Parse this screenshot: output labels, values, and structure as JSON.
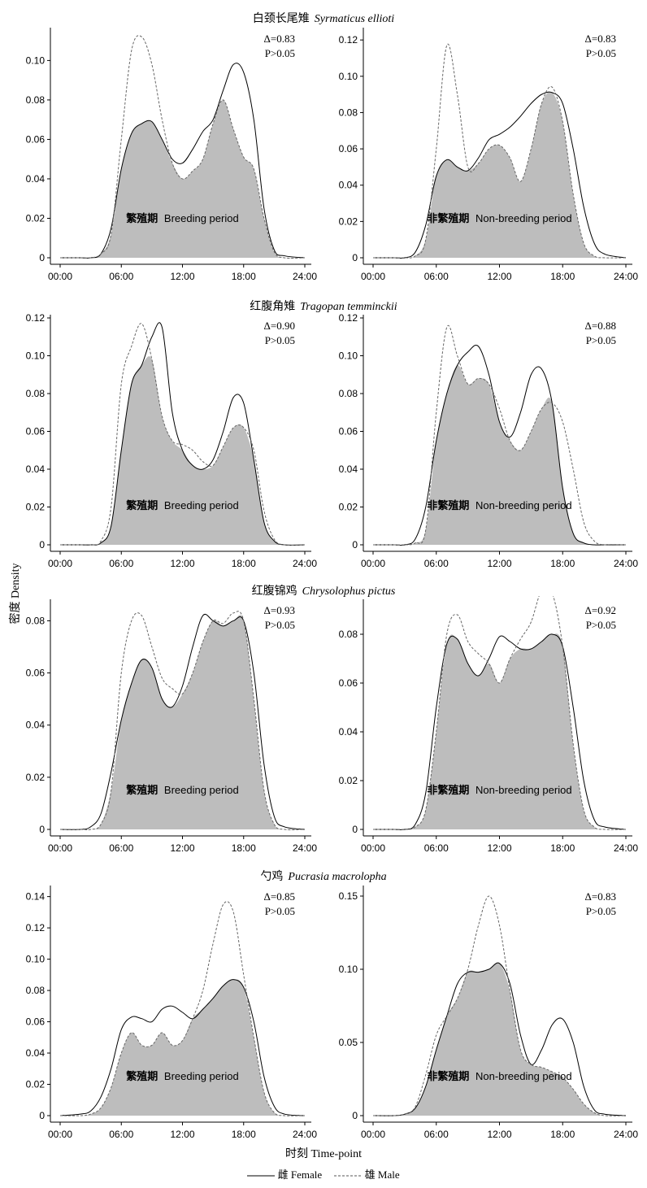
{
  "species": [
    {
      "cn": "白颈长尾雉",
      "latin": "Syrmaticus ellioti"
    },
    {
      "cn": "红腹角雉",
      "latin": "Tragopan temminckii"
    },
    {
      "cn": "红腹锦鸡",
      "latin": "Chrysolophus pictus"
    },
    {
      "cn": "勺鸡",
      "latin": "Pucrasia macrolopha"
    }
  ],
  "y_axis_label": "密度 Density",
  "x_axis_label": "时刻 Time-point",
  "legend": {
    "female": "雌 Female",
    "male": "雄 Male"
  },
  "periods": {
    "breeding": {
      "cn": "繁殖期",
      "en": "Breeding period"
    },
    "nonbreeding": {
      "cn": "非繁殖期",
      "en": "Non-breeding period"
    }
  },
  "chart_data": [
    {
      "type": "line",
      "species": "白颈长尾雉 Syrmaticus ellioti",
      "period": "繁殖期 Breeding period",
      "delta": "Δ=0.83",
      "p": "P>0.05",
      "ylim": [
        0,
        0.115
      ],
      "yticks": [
        0,
        0.02,
        0.04,
        0.06,
        0.08,
        0.1
      ],
      "ytick_labels": [
        "0",
        "0.02",
        "0.04",
        "0.06",
        "0.08",
        "0.10"
      ],
      "xticks": [
        "00:00",
        "06:00",
        "12:00",
        "18:00",
        "24:00"
      ],
      "xlim": [
        0,
        24
      ],
      "x": [
        0,
        2,
        3,
        4,
        5,
        6,
        7,
        8,
        9,
        10,
        11,
        12,
        13,
        14,
        15,
        16,
        17,
        18,
        19,
        20,
        21,
        22,
        24
      ],
      "series": [
        {
          "name": "雌 Female",
          "style": "solid",
          "values": [
            0,
            0,
            0,
            0.002,
            0.015,
            0.045,
            0.063,
            0.068,
            0.069,
            0.06,
            0.05,
            0.048,
            0.055,
            0.064,
            0.07,
            0.085,
            0.098,
            0.094,
            0.07,
            0.025,
            0.004,
            0.001,
            0
          ]
        },
        {
          "name": "雄 Male",
          "style": "dashed",
          "values": [
            0,
            0,
            0,
            0.002,
            0.012,
            0.06,
            0.105,
            0.112,
            0.098,
            0.07,
            0.048,
            0.04,
            0.044,
            0.05,
            0.068,
            0.08,
            0.065,
            0.051,
            0.045,
            0.02,
            0.003,
            0,
            0
          ]
        }
      ]
    },
    {
      "type": "line",
      "species": "白颈长尾雉 Syrmaticus ellioti",
      "period": "非繁殖期 Non-breeding period",
      "delta": "Δ=0.83",
      "p": "P>0.05",
      "ylim": [
        0,
        0.125
      ],
      "yticks": [
        0,
        0.02,
        0.04,
        0.06,
        0.08,
        0.1,
        0.12
      ],
      "ytick_labels": [
        "0",
        "0.02",
        "0.04",
        "0.06",
        "0.08",
        "0.10",
        "0.12"
      ],
      "xticks": [
        "00:00",
        "06:00",
        "12:00",
        "18:00",
        "24:00"
      ],
      "xlim": [
        0,
        24
      ],
      "x": [
        0,
        2,
        3,
        4,
        5,
        6,
        7,
        8,
        9,
        10,
        11,
        12,
        13,
        14,
        15,
        16,
        17,
        18,
        19,
        20,
        21,
        22,
        24
      ],
      "series": [
        {
          "name": "雌 Female",
          "style": "solid",
          "values": [
            0,
            0,
            0,
            0.003,
            0.018,
            0.045,
            0.054,
            0.05,
            0.048,
            0.055,
            0.065,
            0.068,
            0.072,
            0.078,
            0.085,
            0.09,
            0.091,
            0.085,
            0.06,
            0.028,
            0.008,
            0.002,
            0
          ]
        },
        {
          "name": "雄 Male",
          "style": "dashed",
          "values": [
            0,
            0,
            0,
            0.001,
            0.01,
            0.06,
            0.117,
            0.09,
            0.05,
            0.052,
            0.06,
            0.062,
            0.055,
            0.042,
            0.06,
            0.085,
            0.094,
            0.075,
            0.035,
            0.008,
            0.001,
            0,
            0
          ]
        }
      ]
    },
    {
      "type": "line",
      "species": "红腹角雉 Tragopan temminckii",
      "period": "繁殖期 Breeding period",
      "delta": "Δ=0.90",
      "p": "P>0.05",
      "ylim": [
        0,
        0.12
      ],
      "yticks": [
        0,
        0.02,
        0.04,
        0.06,
        0.08,
        0.1,
        0.12
      ],
      "ytick_labels": [
        "0",
        "0.02",
        "0.04",
        "0.06",
        "0.08",
        "0.10",
        "0.12"
      ],
      "xticks": [
        "00:00",
        "06:00",
        "12:00",
        "18:00",
        "24:00"
      ],
      "xlim": [
        0,
        24
      ],
      "x": [
        0,
        2,
        3,
        4,
        5,
        6,
        7,
        8,
        9,
        10,
        11,
        12,
        13,
        14,
        15,
        16,
        17,
        18,
        19,
        20,
        21,
        22,
        24
      ],
      "series": [
        {
          "name": "雌 Female",
          "style": "solid",
          "values": [
            0,
            0,
            0,
            0.001,
            0.01,
            0.05,
            0.085,
            0.095,
            0.11,
            0.115,
            0.07,
            0.05,
            0.042,
            0.04,
            0.045,
            0.06,
            0.078,
            0.075,
            0.045,
            0.012,
            0.002,
            0,
            0
          ]
        },
        {
          "name": "雄 Male",
          "style": "dashed",
          "values": [
            0,
            0,
            0,
            0.002,
            0.02,
            0.085,
            0.105,
            0.117,
            0.098,
            0.068,
            0.055,
            0.053,
            0.05,
            0.044,
            0.042,
            0.052,
            0.062,
            0.062,
            0.05,
            0.018,
            0.003,
            0,
            0
          ]
        }
      ]
    },
    {
      "type": "line",
      "species": "红腹角雉 Tragopan temminckii",
      "period": "非繁殖期 Non-breeding period",
      "delta": "Δ=0.88",
      "p": "P>0.05",
      "ylim": [
        0,
        0.12
      ],
      "yticks": [
        0,
        0.02,
        0.04,
        0.06,
        0.08,
        0.1,
        0.12
      ],
      "ytick_labels": [
        "0",
        "0.02",
        "0.04",
        "0.06",
        "0.08",
        "0.10",
        "0.12"
      ],
      "xticks": [
        "00:00",
        "06:00",
        "12:00",
        "18:00",
        "24:00"
      ],
      "xlim": [
        0,
        24
      ],
      "x": [
        0,
        2,
        3,
        4,
        5,
        6,
        7,
        8,
        9,
        10,
        11,
        12,
        13,
        14,
        15,
        16,
        17,
        18,
        19,
        20,
        21,
        22,
        24
      ],
      "series": [
        {
          "name": "雌 Female",
          "style": "solid",
          "values": [
            0,
            0,
            0,
            0.003,
            0.02,
            0.055,
            0.08,
            0.095,
            0.102,
            0.105,
            0.09,
            0.065,
            0.057,
            0.07,
            0.09,
            0.093,
            0.075,
            0.03,
            0.006,
            0.001,
            0,
            0,
            0
          ]
        },
        {
          "name": "雄 Male",
          "style": "dashed",
          "values": [
            0,
            0,
            0,
            0.001,
            0.008,
            0.07,
            0.115,
            0.1,
            0.085,
            0.088,
            0.085,
            0.072,
            0.055,
            0.05,
            0.06,
            0.072,
            0.075,
            0.065,
            0.04,
            0.012,
            0.002,
            0,
            0
          ]
        }
      ]
    },
    {
      "type": "line",
      "species": "红腹锦鸡 Chrysolophus pictus",
      "period": "繁殖期 Breeding period",
      "delta": "Δ=0.93",
      "p": "P>0.05",
      "ylim": [
        0,
        0.087
      ],
      "yticks": [
        0,
        0.02,
        0.04,
        0.06,
        0.08
      ],
      "ytick_labels": [
        "0",
        "0.02",
        "0.04",
        "0.06",
        "0.08"
      ],
      "xticks": [
        "00:00",
        "06:00",
        "12:00",
        "18:00",
        "24:00"
      ],
      "xlim": [
        0,
        24
      ],
      "x": [
        0,
        2,
        3,
        4,
        5,
        6,
        7,
        8,
        9,
        10,
        11,
        12,
        13,
        14,
        15,
        16,
        17,
        18,
        19,
        20,
        21,
        22,
        24
      ],
      "series": [
        {
          "name": "雌 Female",
          "style": "solid",
          "values": [
            0,
            0,
            0.001,
            0.006,
            0.022,
            0.042,
            0.056,
            0.065,
            0.062,
            0.05,
            0.047,
            0.055,
            0.07,
            0.082,
            0.08,
            0.078,
            0.08,
            0.08,
            0.06,
            0.025,
            0.005,
            0.001,
            0
          ]
        },
        {
          "name": "雄 Male",
          "style": "dashed",
          "values": [
            0,
            0,
            0,
            0.002,
            0.015,
            0.06,
            0.08,
            0.082,
            0.07,
            0.058,
            0.054,
            0.052,
            0.06,
            0.072,
            0.08,
            0.079,
            0.083,
            0.08,
            0.05,
            0.015,
            0.002,
            0,
            0
          ]
        }
      ]
    },
    {
      "type": "line",
      "species": "红腹锦鸡 Chrysolophus pictus",
      "period": "非繁殖期 Non-breeding period",
      "delta": "Δ=0.92",
      "p": "P>0.05",
      "ylim": [
        0,
        0.093
      ],
      "yticks": [
        0,
        0.02,
        0.04,
        0.06,
        0.08
      ],
      "ytick_labels": [
        "0",
        "0.02",
        "0.04",
        "0.06",
        "0.08"
      ],
      "xticks": [
        "00:00",
        "06:00",
        "12:00",
        "18:00",
        "24:00"
      ],
      "xlim": [
        0,
        24
      ],
      "x": [
        0,
        2,
        3,
        4,
        5,
        6,
        7,
        8,
        9,
        10,
        11,
        12,
        13,
        14,
        15,
        16,
        17,
        18,
        19,
        20,
        21,
        22,
        24
      ],
      "series": [
        {
          "name": "雌 Female",
          "style": "solid",
          "values": [
            0,
            0,
            0,
            0.002,
            0.015,
            0.05,
            0.076,
            0.078,
            0.068,
            0.063,
            0.07,
            0.079,
            0.077,
            0.074,
            0.074,
            0.077,
            0.08,
            0.075,
            0.05,
            0.02,
            0.004,
            0.001,
            0
          ]
        },
        {
          "name": "雄 Male",
          "style": "dashed",
          "values": [
            0,
            0,
            0,
            0.001,
            0.008,
            0.04,
            0.08,
            0.088,
            0.077,
            0.072,
            0.068,
            0.06,
            0.07,
            0.078,
            0.085,
            0.098,
            0.097,
            0.075,
            0.035,
            0.008,
            0.001,
            0,
            0
          ]
        }
      ]
    },
    {
      "type": "line",
      "species": "勺鸡 Pucrasia macrolopha",
      "period": "繁殖期 Breeding period",
      "delta": "Δ=0.85",
      "p": "P>0.05",
      "ylim": [
        0,
        0.145
      ],
      "yticks": [
        0,
        0.02,
        0.04,
        0.06,
        0.08,
        0.1,
        0.12,
        0.14
      ],
      "ytick_labels": [
        "0",
        "0.02",
        "0.04",
        "0.06",
        "0.08",
        "0.10",
        "0.12",
        "0.14"
      ],
      "xticks": [
        "00:00",
        "06:00",
        "12:00",
        "18:00",
        "24:00"
      ],
      "xlim": [
        0,
        24
      ],
      "x": [
        0,
        2,
        3,
        4,
        5,
        6,
        7,
        8,
        9,
        10,
        11,
        12,
        13,
        14,
        15,
        16,
        17,
        18,
        19,
        20,
        21,
        22,
        24
      ],
      "series": [
        {
          "name": "雌 Female",
          "style": "solid",
          "values": [
            0,
            0.001,
            0.003,
            0.012,
            0.03,
            0.055,
            0.063,
            0.062,
            0.06,
            0.068,
            0.07,
            0.066,
            0.062,
            0.068,
            0.075,
            0.083,
            0.087,
            0.082,
            0.06,
            0.025,
            0.006,
            0.001,
            0
          ]
        },
        {
          "name": "雄 Male",
          "style": "dashed",
          "values": [
            0,
            0,
            0.001,
            0.005,
            0.018,
            0.04,
            0.053,
            0.045,
            0.045,
            0.053,
            0.045,
            0.048,
            0.062,
            0.08,
            0.11,
            0.135,
            0.13,
            0.09,
            0.05,
            0.015,
            0.002,
            0,
            0
          ]
        }
      ]
    },
    {
      "type": "line",
      "species": "勺鸡 Pucrasia macrolopha",
      "period": "非繁殖期 Non-breeding period",
      "delta": "Δ=0.83",
      "p": "P>0.05",
      "ylim": [
        0,
        0.155
      ],
      "yticks": [
        0,
        0.05,
        0.1,
        0.15
      ],
      "ytick_labels": [
        "0",
        "0.05",
        "0.10",
        "0.15"
      ],
      "xticks": [
        "00:00",
        "06:00",
        "12:00",
        "18:00",
        "24:00"
      ],
      "xlim": [
        0,
        24
      ],
      "x": [
        0,
        2,
        3,
        4,
        5,
        6,
        7,
        8,
        9,
        10,
        11,
        12,
        13,
        14,
        15,
        16,
        17,
        18,
        19,
        20,
        21,
        22,
        24
      ],
      "series": [
        {
          "name": "雌 Female",
          "style": "solid",
          "values": [
            0,
            0,
            0.001,
            0.005,
            0.02,
            0.045,
            0.068,
            0.09,
            0.098,
            0.098,
            0.1,
            0.104,
            0.09,
            0.055,
            0.035,
            0.045,
            0.062,
            0.066,
            0.05,
            0.02,
            0.004,
            0.001,
            0
          ]
        },
        {
          "name": "雄 Male",
          "style": "dashed",
          "values": [
            0,
            0,
            0.001,
            0.006,
            0.028,
            0.055,
            0.068,
            0.08,
            0.1,
            0.13,
            0.15,
            0.13,
            0.085,
            0.045,
            0.035,
            0.033,
            0.03,
            0.026,
            0.018,
            0.008,
            0.002,
            0,
            0
          ]
        }
      ]
    }
  ]
}
